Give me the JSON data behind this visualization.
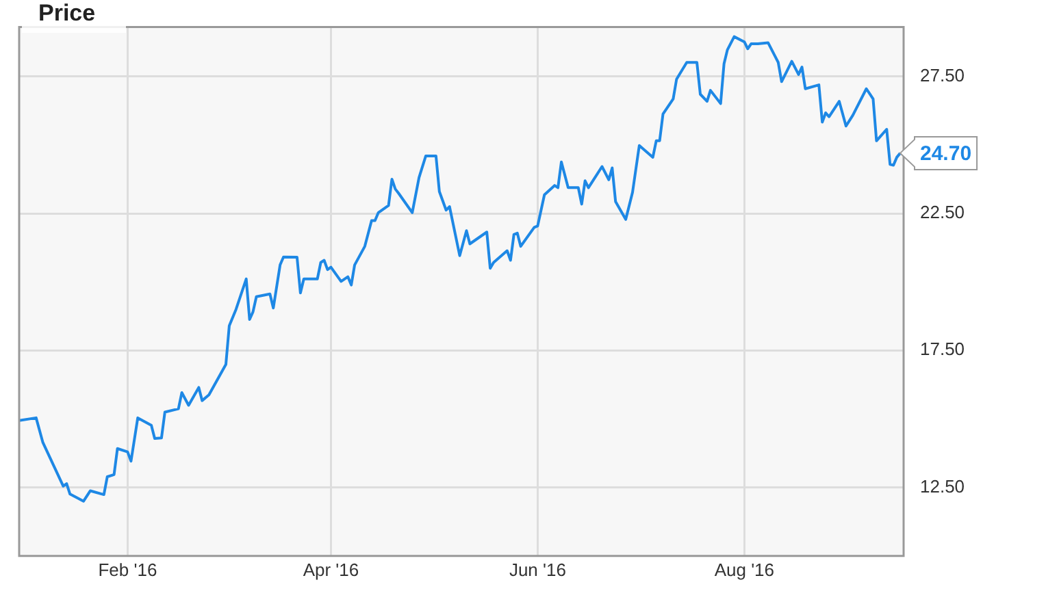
{
  "chart_data": {
    "type": "line",
    "title": "Price",
    "x": [
      "2015-12-31",
      "2016-01-05",
      "2016-01-07",
      "2016-01-13",
      "2016-01-14",
      "2016-01-15",
      "2016-01-19",
      "2016-01-21",
      "2016-01-25",
      "2016-01-26",
      "2016-01-28",
      "2016-01-29",
      "2016-02-01",
      "2016-02-02",
      "2016-02-04",
      "2016-02-08",
      "2016-02-09",
      "2016-02-11",
      "2016-02-12",
      "2016-02-16",
      "2016-02-17",
      "2016-02-19",
      "2016-02-22",
      "2016-02-23",
      "2016-02-25",
      "2016-03-01",
      "2016-03-02",
      "2016-03-04",
      "2016-03-07",
      "2016-03-08",
      "2016-03-09",
      "2016-03-10",
      "2016-03-14",
      "2016-03-15",
      "2016-03-17",
      "2016-03-18",
      "2016-03-22",
      "2016-03-23",
      "2016-03-24",
      "2016-03-28",
      "2016-03-29",
      "2016-03-30",
      "2016-03-31",
      "2016-04-01",
      "2016-04-04",
      "2016-04-06",
      "2016-04-07",
      "2016-04-08",
      "2016-04-11",
      "2016-04-13",
      "2016-04-14",
      "2016-04-15",
      "2016-04-18",
      "2016-04-19",
      "2016-04-20",
      "2016-04-21",
      "2016-04-25",
      "2016-04-27",
      "2016-04-29",
      "2016-05-02",
      "2016-05-03",
      "2016-05-05",
      "2016-05-06",
      "2016-05-09",
      "2016-05-11",
      "2016-05-12",
      "2016-05-17",
      "2016-05-18",
      "2016-05-19",
      "2016-05-23",
      "2016-05-24",
      "2016-05-25",
      "2016-05-26",
      "2016-05-27",
      "2016-05-31",
      "2016-06-01",
      "2016-06-03",
      "2016-06-06",
      "2016-06-07",
      "2016-06-08",
      "2016-06-10",
      "2016-06-13",
      "2016-06-14",
      "2016-06-15",
      "2016-06-16",
      "2016-06-20",
      "2016-06-22",
      "2016-06-23",
      "2016-06-24",
      "2016-06-27",
      "2016-06-29",
      "2016-07-01",
      "2016-07-05",
      "2016-07-06",
      "2016-07-07",
      "2016-07-08",
      "2016-07-11",
      "2016-07-12",
      "2016-07-15",
      "2016-07-18",
      "2016-07-19",
      "2016-07-21",
      "2016-07-22",
      "2016-07-25",
      "2016-07-26",
      "2016-07-27",
      "2016-07-29",
      "2016-08-01",
      "2016-08-02",
      "2016-08-03",
      "2016-08-05",
      "2016-08-08",
      "2016-08-10",
      "2016-08-11",
      "2016-08-12",
      "2016-08-15",
      "2016-08-17",
      "2016-08-18",
      "2016-08-19",
      "2016-08-23",
      "2016-08-24",
      "2016-08-25",
      "2016-08-26",
      "2016-08-29",
      "2016-08-31",
      "2016-09-02",
      "2016-09-06",
      "2016-09-08",
      "2016-09-09",
      "2016-09-12",
      "2016-09-13",
      "2016-09-14",
      "2016-09-15",
      "2016-09-16"
    ],
    "series": [
      {
        "color": "#1e88e5",
        "values": [
          14.94,
          15.04,
          14.14,
          12.55,
          12.64,
          12.26,
          12.0,
          12.38,
          12.24,
          12.89,
          12.97,
          13.92,
          13.8,
          13.46,
          15.04,
          14.77,
          14.29,
          14.31,
          15.25,
          15.37,
          15.96,
          15.5,
          16.15,
          15.67,
          15.88,
          16.99,
          18.4,
          19.0,
          20.11,
          18.63,
          18.91,
          19.46,
          19.56,
          19.05,
          20.62,
          20.91,
          20.9,
          19.6,
          20.11,
          20.11,
          20.71,
          20.79,
          20.45,
          20.54,
          20.02,
          20.19,
          19.89,
          20.62,
          21.3,
          22.24,
          22.24,
          22.53,
          22.79,
          23.75,
          23.39,
          23.23,
          22.53,
          23.81,
          24.6,
          24.6,
          23.3,
          22.62,
          22.75,
          20.96,
          21.87,
          21.39,
          21.82,
          20.5,
          20.71,
          21.14,
          20.79,
          21.73,
          21.78,
          21.3,
          21.99,
          22.04,
          23.18,
          23.52,
          23.44,
          24.38,
          23.44,
          23.44,
          22.84,
          23.69,
          23.44,
          24.21,
          23.73,
          24.16,
          22.93,
          22.28,
          23.27,
          24.98,
          24.55,
          25.15,
          25.15,
          26.13,
          26.68,
          27.4,
          28.01,
          28.01,
          26.85,
          26.59,
          26.99,
          26.51,
          27.96,
          28.47,
          28.95,
          28.76,
          28.51,
          28.69,
          28.69,
          28.73,
          28.25,
          28.01,
          27.31,
          28.05,
          27.57,
          27.84,
          27.05,
          27.19,
          25.83,
          26.17,
          26.03,
          26.59,
          25.69,
          26.08,
          27.05,
          26.68,
          25.15,
          25.57,
          24.29,
          24.26,
          24.55,
          24.7
        ]
      }
    ],
    "xlim": [
      "2015-12-31",
      "2016-09-17"
    ],
    "xticks": [
      {
        "value": "2016-02-01",
        "label": "Feb '16"
      },
      {
        "value": "2016-04-01",
        "label": "Apr '16"
      },
      {
        "value": "2016-06-01",
        "label": "Jun '16"
      },
      {
        "value": "2016-08-01",
        "label": "Aug '16"
      }
    ],
    "ylim": [
      10,
      29.3
    ],
    "yticks": [
      {
        "value": 12.5,
        "label": "12.50"
      },
      {
        "value": 17.5,
        "label": "17.50"
      },
      {
        "value": 22.5,
        "label": "22.50"
      },
      {
        "value": 27.5,
        "label": "27.50"
      }
    ],
    "annotations": [
      {
        "text": "24.70",
        "x": "2016-09-16",
        "y": 24.7
      }
    ],
    "grid": true,
    "legend": false,
    "marker": "none",
    "line_style": "solid"
  }
}
